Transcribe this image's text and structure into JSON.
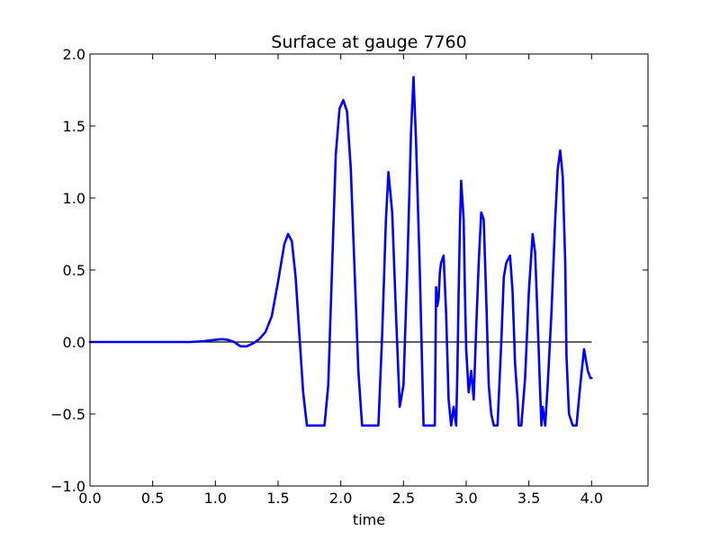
{
  "chart_data": {
    "type": "line",
    "title": "Surface at gauge 7760",
    "xlabel": "time",
    "ylabel": "",
    "xlim": [
      0.0,
      4.45
    ],
    "ylim": [
      -1.0,
      2.0
    ],
    "x_ticks": [
      0.0,
      0.5,
      1.0,
      1.5,
      2.0,
      2.5,
      3.0,
      3.5,
      4.0
    ],
    "x_tick_labels": [
      "0.0",
      "0.5",
      "1.0",
      "1.5",
      "2.0",
      "2.5",
      "3.0",
      "3.5",
      "4.0"
    ],
    "y_ticks": [
      -1.0,
      -0.5,
      0.0,
      0.5,
      1.0,
      1.5,
      2.0
    ],
    "y_tick_labels": [
      "−1.0",
      "−0.5",
      "0.0",
      "0.5",
      "1.0",
      "1.5",
      "2.0"
    ],
    "grid": false,
    "reference_line": {
      "y": 0.0,
      "x_range": [
        0.0,
        4.0
      ],
      "color": "#000000"
    },
    "series": [
      {
        "color": "#0000ff",
        "x": [
          0.0,
          0.5,
          0.8,
          0.9,
          1.0,
          1.05,
          1.1,
          1.15,
          1.2,
          1.25,
          1.3,
          1.35,
          1.4,
          1.45,
          1.5,
          1.55,
          1.58,
          1.61,
          1.64,
          1.67,
          1.7,
          1.73,
          1.75,
          1.87,
          1.9,
          1.93,
          1.96,
          1.99,
          2.02,
          2.05,
          2.08,
          2.11,
          2.14,
          2.17,
          2.3,
          2.33,
          2.36,
          2.38,
          2.41,
          2.44,
          2.47,
          2.5,
          2.53,
          2.56,
          2.58,
          2.6,
          2.63,
          2.66,
          2.7,
          2.75,
          2.76,
          2.77,
          2.78,
          2.79,
          2.8,
          2.82,
          2.84,
          2.86,
          2.88,
          2.9,
          2.92,
          2.93,
          2.94,
          2.95,
          2.96,
          2.98,
          2.99,
          3.0,
          3.02,
          3.04,
          3.06,
          3.08,
          3.1,
          3.12,
          3.14,
          3.16,
          3.18,
          3.2,
          3.22,
          3.25,
          3.28,
          3.3,
          3.32,
          3.35,
          3.37,
          3.39,
          3.41,
          3.42,
          3.44,
          3.47,
          3.5,
          3.53,
          3.55,
          3.57,
          3.59,
          3.6,
          3.61,
          3.63,
          3.65,
          3.68,
          3.71,
          3.73,
          3.75,
          3.77,
          3.79,
          3.8,
          3.82,
          3.85,
          3.88,
          3.91,
          3.94,
          3.97,
          3.99,
          4.0
        ],
        "y": [
          0.0,
          0.0,
          0.0,
          0.005,
          0.015,
          0.02,
          0.015,
          0.0,
          -0.03,
          -0.03,
          -0.01,
          0.02,
          0.07,
          0.18,
          0.42,
          0.68,
          0.75,
          0.7,
          0.45,
          0.05,
          -0.35,
          -0.58,
          -0.58,
          -0.58,
          -0.3,
          0.5,
          1.3,
          1.62,
          1.68,
          1.6,
          1.2,
          0.5,
          -0.2,
          -0.58,
          -0.58,
          0.05,
          0.85,
          1.18,
          0.9,
          0.2,
          -0.45,
          -0.3,
          0.5,
          1.45,
          1.84,
          1.4,
          0.5,
          -0.58,
          -0.58,
          -0.58,
          0.38,
          0.25,
          0.3,
          0.48,
          0.55,
          0.6,
          0.2,
          -0.4,
          -0.58,
          -0.45,
          -0.58,
          -0.2,
          0.35,
          0.8,
          1.12,
          0.85,
          0.35,
          -0.05,
          -0.35,
          -0.2,
          -0.4,
          0.1,
          0.55,
          0.9,
          0.85,
          0.3,
          -0.3,
          -0.5,
          -0.58,
          -0.58,
          0.0,
          0.45,
          0.55,
          0.6,
          0.35,
          -0.15,
          -0.4,
          -0.58,
          -0.58,
          -0.25,
          0.35,
          0.75,
          0.62,
          0.15,
          -0.35,
          -0.58,
          -0.45,
          -0.58,
          -0.3,
          0.2,
          0.85,
          1.2,
          1.33,
          1.15,
          0.55,
          -0.1,
          -0.5,
          -0.58,
          -0.58,
          -0.3,
          -0.05,
          -0.2,
          -0.25,
          -0.25
        ]
      }
    ]
  }
}
